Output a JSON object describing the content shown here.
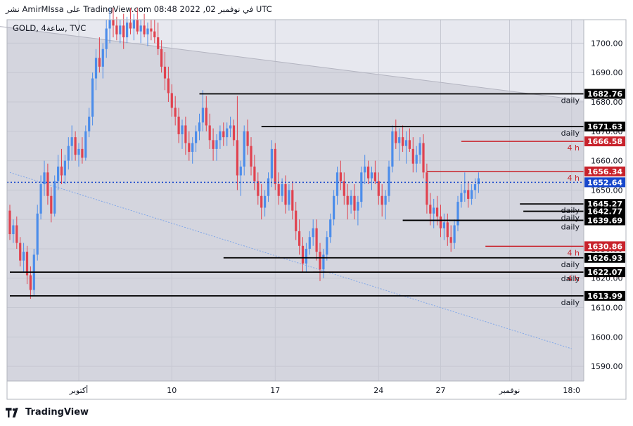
{
  "header": {
    "publish_line": "نشر AmirMIssa على TradingView.com في نوفمبر 02, 2022 08:48 UTC"
  },
  "footer": {
    "brand": "TradingView"
  },
  "chart_data": {
    "type": "candlestick",
    "title": "GOLD, ساعة4, TVC",
    "ylim": [
      1585,
      1708
    ],
    "y_ticks": [
      "1700.00",
      "1690.00",
      "1680.00",
      "1670.00",
      "1660.00",
      "1650.00",
      "1640.00",
      "1630.00",
      "1620.00",
      "1610.00",
      "1600.00",
      "1590.00"
    ],
    "y_tick_values": [
      1700,
      1690,
      1680,
      1670,
      1660,
      1650,
      1640,
      1630,
      1620,
      1610,
      1600,
      1590
    ],
    "x_ticks": [
      {
        "label": "أكتوبر",
        "i": 20
      },
      {
        "label": "10",
        "i": 47
      },
      {
        "label": "17",
        "i": 77
      },
      {
        "label": "24",
        "i": 107
      },
      {
        "label": "27",
        "i": 125
      },
      {
        "label": "نوفمبر",
        "i": 145
      },
      {
        "label": "18:0",
        "i": 163
      }
    ],
    "current_price": {
      "value": 1652.64,
      "label": "1652.64",
      "color": "#1848cc"
    },
    "colors": {
      "up": "#4c8dea",
      "down": "#e0424f",
      "bg": "#d4d5de",
      "black": "#000000",
      "red": "#c8232c"
    },
    "levels": [
      {
        "price": 1682.76,
        "label": "1682.76",
        "tag": "daily",
        "i0": 55,
        "color": "#000000"
      },
      {
        "price": 1671.63,
        "label": "1671.63",
        "tag": "daily",
        "i0": 73,
        "color": "#000000"
      },
      {
        "price": 1666.58,
        "label": "1666.58",
        "tag": "4 h",
        "i0": 131,
        "color": "#c8232c"
      },
      {
        "price": 1656.34,
        "label": "1656.34",
        "tag": "4 h",
        "i0": 121,
        "color": "#c8232c"
      },
      {
        "price": 1645.27,
        "label": "1645.27",
        "tag": "daily",
        "i0": 148,
        "color": "#000000"
      },
      {
        "price": 1642.77,
        "label": "1642.77",
        "tag": "daily",
        "i0": 149,
        "color": "#000000"
      },
      {
        "price": 1639.69,
        "label": "1639.69",
        "tag": "daily",
        "i0": 114,
        "color": "#000000"
      },
      {
        "price": 1630.86,
        "label": "1630.86",
        "tag": "4 h",
        "i0": 138,
        "color": "#c8232c"
      },
      {
        "price": 1626.93,
        "label": "1626.93",
        "tag": "daily",
        "i0": 62,
        "color": "#000000"
      },
      {
        "price": 1622.07,
        "label": "1622.07",
        "tag": "4 h",
        "i0": 88,
        "color": "#c8232c"
      },
      {
        "price": 1622.07,
        "label": "1622.07",
        "tag": "daily",
        "i0": 0,
        "color": "#000000"
      },
      {
        "price": 1613.99,
        "label": "1613.99",
        "tag": "daily",
        "i0": 0,
        "color": "#000000"
      }
    ],
    "trend_lines": [
      {
        "name": "upper-trend",
        "i0": -5,
        "p0": 1706,
        "i1": 163,
        "p1": 1681
      },
      {
        "name": "lower-trend",
        "i0": 0,
        "p0": 1656,
        "i1": 163,
        "p1": 1596
      }
    ],
    "candles": [
      [
        1643,
        1645,
        1633,
        1635
      ],
      [
        1635,
        1640,
        1632,
        1638
      ],
      [
        1638,
        1641,
        1630,
        1632
      ],
      [
        1632,
        1634,
        1624,
        1626
      ],
      [
        1626,
        1632,
        1622,
        1629
      ],
      [
        1629,
        1631,
        1618,
        1621
      ],
      [
        1621,
        1624,
        1613,
        1616
      ],
      [
        1616,
        1630,
        1614,
        1628
      ],
      [
        1628,
        1645,
        1626,
        1642
      ],
      [
        1642,
        1655,
        1640,
        1652
      ],
      [
        1652,
        1660,
        1648,
        1656
      ],
      [
        1656,
        1659,
        1645,
        1648
      ],
      [
        1648,
        1651,
        1639,
        1642
      ],
      [
        1642,
        1655,
        1641,
        1653
      ],
      [
        1653,
        1662,
        1650,
        1658
      ],
      [
        1658,
        1664,
        1652,
        1655
      ],
      [
        1655,
        1662,
        1652,
        1660
      ],
      [
        1660,
        1668,
        1657,
        1665
      ],
      [
        1665,
        1672,
        1660,
        1668
      ],
      [
        1668,
        1670,
        1660,
        1662
      ],
      [
        1662,
        1666,
        1658,
        1664
      ],
      [
        1664,
        1668,
        1659,
        1661
      ],
      [
        1661,
        1672,
        1660,
        1670
      ],
      [
        1670,
        1678,
        1668,
        1675
      ],
      [
        1675,
        1690,
        1672,
        1688
      ],
      [
        1688,
        1698,
        1684,
        1695
      ],
      [
        1695,
        1702,
        1690,
        1692
      ],
      [
        1692,
        1700,
        1688,
        1698
      ],
      [
        1698,
        1708,
        1695,
        1705
      ],
      [
        1705,
        1712,
        1700,
        1708
      ],
      [
        1708,
        1712,
        1702,
        1706
      ],
      [
        1706,
        1709,
        1701,
        1703
      ],
      [
        1703,
        1708,
        1700,
        1706
      ],
      [
        1706,
        1710,
        1698,
        1702
      ],
      [
        1702,
        1709,
        1700,
        1707
      ],
      [
        1707,
        1712,
        1703,
        1705
      ],
      [
        1705,
        1710,
        1701,
        1708
      ],
      [
        1708,
        1712,
        1703,
        1704
      ],
      [
        1704,
        1708,
        1700,
        1706
      ],
      [
        1706,
        1710,
        1702,
        1703
      ],
      [
        1703,
        1707,
        1699,
        1705
      ],
      [
        1705,
        1708,
        1701,
        1704
      ],
      [
        1704,
        1708,
        1700,
        1702
      ],
      [
        1702,
        1707,
        1696,
        1698
      ],
      [
        1698,
        1701,
        1690,
        1692
      ],
      [
        1692,
        1697,
        1684,
        1688
      ],
      [
        1688,
        1692,
        1680,
        1683
      ],
      [
        1683,
        1686,
        1675,
        1678
      ],
      [
        1678,
        1682,
        1672,
        1675
      ],
      [
        1675,
        1678,
        1666,
        1669
      ],
      [
        1669,
        1674,
        1664,
        1672
      ],
      [
        1672,
        1675,
        1662,
        1666
      ],
      [
        1666,
        1670,
        1660,
        1663
      ],
      [
        1663,
        1668,
        1659,
        1666
      ],
      [
        1666,
        1672,
        1663,
        1670
      ],
      [
        1670,
        1676,
        1667,
        1673
      ],
      [
        1673,
        1684,
        1670,
        1678
      ],
      [
        1678,
        1682,
        1670,
        1672
      ],
      [
        1672,
        1676,
        1664,
        1667
      ],
      [
        1667,
        1671,
        1660,
        1664
      ],
      [
        1664,
        1669,
        1660,
        1667
      ],
      [
        1667,
        1672,
        1664,
        1670
      ],
      [
        1670,
        1673,
        1665,
        1668
      ],
      [
        1668,
        1673,
        1665,
        1671
      ],
      [
        1671,
        1675,
        1668,
        1672
      ],
      [
        1672,
        1674,
        1665,
        1667
      ],
      [
        1667,
        1682,
        1650,
        1655
      ],
      [
        1655,
        1660,
        1648,
        1658
      ],
      [
        1658,
        1672,
        1655,
        1670
      ],
      [
        1670,
        1674,
        1662,
        1665
      ],
      [
        1665,
        1668,
        1655,
        1658
      ],
      [
        1658,
        1662,
        1650,
        1653
      ],
      [
        1653,
        1656,
        1645,
        1648
      ],
      [
        1648,
        1652,
        1640,
        1644
      ],
      [
        1644,
        1650,
        1641,
        1648
      ],
      [
        1648,
        1656,
        1646,
        1654
      ],
      [
        1654,
        1667,
        1651,
        1664
      ],
      [
        1664,
        1666,
        1650,
        1652
      ],
      [
        1652,
        1656,
        1645,
        1648
      ],
      [
        1648,
        1654,
        1646,
        1652
      ],
      [
        1652,
        1655,
        1642,
        1645
      ],
      [
        1645,
        1652,
        1643,
        1650
      ],
      [
        1650,
        1653,
        1640,
        1643
      ],
      [
        1643,
        1646,
        1633,
        1636
      ],
      [
        1636,
        1640,
        1628,
        1631
      ],
      [
        1631,
        1634,
        1622,
        1625
      ],
      [
        1625,
        1632,
        1622,
        1630
      ],
      [
        1630,
        1636,
        1628,
        1634
      ],
      [
        1634,
        1640,
        1631,
        1637
      ],
      [
        1637,
        1640,
        1626,
        1629
      ],
      [
        1629,
        1632,
        1619,
        1623
      ],
      [
        1623,
        1630,
        1620,
        1628
      ],
      [
        1628,
        1636,
        1626,
        1634
      ],
      [
        1634,
        1642,
        1632,
        1640
      ],
      [
        1640,
        1650,
        1638,
        1648
      ],
      [
        1648,
        1658,
        1645,
        1656
      ],
      [
        1656,
        1660,
        1650,
        1653
      ],
      [
        1653,
        1656,
        1645,
        1648
      ],
      [
        1648,
        1652,
        1640,
        1645
      ],
      [
        1645,
        1650,
        1642,
        1648
      ],
      [
        1648,
        1652,
        1640,
        1643
      ],
      [
        1643,
        1648,
        1638,
        1646
      ],
      [
        1646,
        1658,
        1644,
        1656
      ],
      [
        1656,
        1662,
        1652,
        1658
      ],
      [
        1658,
        1660,
        1652,
        1654
      ],
      [
        1654,
        1658,
        1650,
        1656
      ],
      [
        1656,
        1660,
        1652,
        1653
      ],
      [
        1653,
        1656,
        1645,
        1648
      ],
      [
        1648,
        1652,
        1641,
        1645
      ],
      [
        1645,
        1650,
        1640,
        1648
      ],
      [
        1648,
        1660,
        1646,
        1658
      ],
      [
        1658,
        1672,
        1656,
        1670
      ],
      [
        1670,
        1674,
        1664,
        1666
      ],
      [
        1666,
        1671,
        1660,
        1668
      ],
      [
        1668,
        1672,
        1663,
        1665
      ],
      [
        1665,
        1670,
        1659,
        1667
      ],
      [
        1667,
        1671,
        1663,
        1664
      ],
      [
        1664,
        1668,
        1656,
        1659
      ],
      [
        1659,
        1665,
        1656,
        1662
      ],
      [
        1662,
        1668,
        1659,
        1666
      ],
      [
        1666,
        1669,
        1654,
        1656
      ],
      [
        1656,
        1659,
        1642,
        1645
      ],
      [
        1645,
        1649,
        1638,
        1642
      ],
      [
        1642,
        1647,
        1637,
        1644
      ],
      [
        1644,
        1648,
        1638,
        1641
      ],
      [
        1641,
        1645,
        1634,
        1637
      ],
      [
        1637,
        1642,
        1633,
        1639
      ],
      [
        1639,
        1642,
        1631,
        1634
      ],
      [
        1634,
        1638,
        1629,
        1632
      ],
      [
        1632,
        1640,
        1630,
        1638
      ],
      [
        1638,
        1648,
        1636,
        1646
      ],
      [
        1646,
        1652,
        1644,
        1649
      ],
      [
        1649,
        1656,
        1646,
        1650
      ],
      [
        1650,
        1653,
        1644,
        1647
      ],
      [
        1647,
        1652,
        1645,
        1650
      ],
      [
        1650,
        1654,
        1647,
        1652
      ],
      [
        1652,
        1656,
        1649,
        1654
      ]
    ]
  }
}
